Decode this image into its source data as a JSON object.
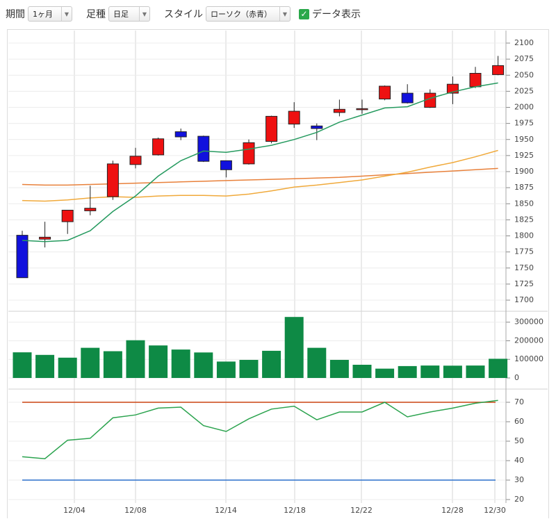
{
  "toolbar": {
    "period_label": "期間",
    "period_value": "1ヶ月",
    "bar_label": "足種",
    "bar_value": "日足",
    "style_label": "スタイル",
    "style_value": "ローソク（赤青）",
    "data_label": "データ表示",
    "data_checked": true
  },
  "colors": {
    "up": "#ee1111",
    "down": "#1111dd",
    "ma_short": "#259a5f",
    "ma_mid": "#f0a93a",
    "ma_long": "#e8803a",
    "volume": "#0e8a45",
    "rsi": "#2ba34e",
    "rsi_upper": "#cc4411",
    "rsi_lower": "#2a6fcc"
  },
  "chart_data": [
    {
      "type": "candlestick",
      "ylim": [
        1700,
        2100
      ],
      "yticks": [
        1700,
        1725,
        1750,
        1775,
        1800,
        1825,
        1850,
        1875,
        1900,
        1925,
        1950,
        1975,
        2000,
        2025,
        2050,
        2075,
        2100
      ],
      "candles": [
        {
          "o": 1801,
          "h": 1808,
          "l": 1735,
          "c": 1735
        },
        {
          "o": 1795,
          "h": 1822,
          "l": 1782,
          "c": 1798
        },
        {
          "o": 1822,
          "h": 1840,
          "l": 1803,
          "c": 1840
        },
        {
          "o": 1839,
          "h": 1878,
          "l": 1832,
          "c": 1843
        },
        {
          "o": 1861,
          "h": 1917,
          "l": 1856,
          "c": 1912
        },
        {
          "o": 1911,
          "h": 1937,
          "l": 1905,
          "c": 1924
        },
        {
          "o": 1926,
          "h": 1953,
          "l": 1925,
          "c": 1951
        },
        {
          "o": 1962,
          "h": 1967,
          "l": 1949,
          "c": 1954
        },
        {
          "o": 1955,
          "h": 1956,
          "l": 1915,
          "c": 1916
        },
        {
          "o": 1917,
          "h": 1917,
          "l": 1891,
          "c": 1903
        },
        {
          "o": 1912,
          "h": 1950,
          "l": 1911,
          "c": 1945
        },
        {
          "o": 1947,
          "h": 1987,
          "l": 1944,
          "c": 1986
        },
        {
          "o": 1974,
          "h": 2008,
          "l": 1968,
          "c": 1994
        },
        {
          "o": 1971,
          "h": 1975,
          "l": 1949,
          "c": 1967
        },
        {
          "o": 1992,
          "h": 2012,
          "l": 1986,
          "c": 1997
        },
        {
          "o": 1997,
          "h": 2012,
          "l": 1990,
          "c": 1998
        },
        {
          "o": 2013,
          "h": 2034,
          "l": 2011,
          "c": 2033
        },
        {
          "o": 2022,
          "h": 2036,
          "l": 2006,
          "c": 2007
        },
        {
          "o": 2000,
          "h": 2028,
          "l": 1999,
          "c": 2022
        },
        {
          "o": 2022,
          "h": 2048,
          "l": 2005,
          "c": 2036
        },
        {
          "o": 2032,
          "h": 2063,
          "l": 2030,
          "c": 2053
        },
        {
          "o": 2051,
          "h": 2080,
          "l": 2050,
          "c": 2065
        }
      ],
      "ma_short": [
        1793,
        1791,
        1793,
        1808,
        1838,
        1862,
        1893,
        1917,
        1932,
        1930,
        1935,
        1941,
        1950,
        1961,
        1977,
        1988,
        1999,
        2001,
        2014,
        2024,
        2032,
        2038
      ],
      "ma_mid": [
        1855,
        1854,
        1856,
        1859,
        1861,
        1860,
        1862,
        1863,
        1863,
        1862,
        1865,
        1870,
        1876,
        1879,
        1883,
        1887,
        1893,
        1899,
        1907,
        1914,
        1923,
        1933
      ],
      "ma_long": [
        1880,
        1879,
        1879,
        1880,
        1881,
        1882,
        1883,
        1884,
        1885,
        1886,
        1887,
        1888,
        1889,
        1890,
        1891,
        1893,
        1895,
        1897,
        1899,
        1901,
        1903,
        1905
      ]
    },
    {
      "type": "bar",
      "ylim": [
        0,
        340000
      ],
      "yticks": [
        0,
        100000,
        200000,
        300000
      ],
      "values": [
        138000,
        124000,
        109000,
        162000,
        144000,
        203000,
        175000,
        153000,
        137000,
        88000,
        97000,
        146000,
        328000,
        162000,
        97000,
        71000,
        50000,
        64000,
        67000,
        66000,
        67000,
        103000
      ]
    },
    {
      "type": "line",
      "ylim": [
        20,
        75
      ],
      "yticks": [
        20,
        30,
        40,
        50,
        60,
        70
      ],
      "values": [
        42,
        41,
        50.5,
        51.5,
        62,
        63.5,
        67,
        67.5,
        58,
        55,
        61.5,
        66.5,
        68,
        61,
        65,
        65,
        70,
        62.5,
        65,
        67,
        69.5,
        71
      ],
      "upper": 70,
      "lower": 30
    }
  ],
  "x_labels": [
    "12/04",
    "12/08",
    "12/14",
    "12/18",
    "12/22",
    "12/28",
    "12/30"
  ]
}
